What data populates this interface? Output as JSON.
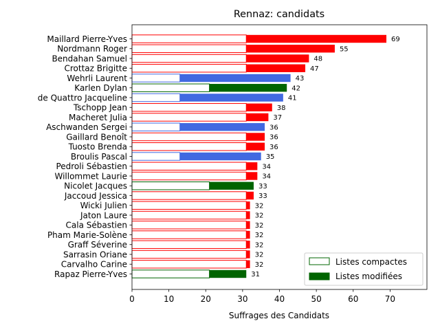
{
  "chart_data": {
    "type": "bar",
    "orientation": "horizontal",
    "stacked": true,
    "title": "Rennaz: candidats",
    "xlabel": "Suffrages des Candidats",
    "ylabel": "",
    "xlim": [
      0,
      80
    ],
    "xticks": [
      "0",
      "10",
      "20",
      "30",
      "40",
      "50",
      "60",
      "70"
    ],
    "grid": false,
    "legend_position": "bottom-right",
    "legend": [
      {
        "name": "Listes compactes",
        "style": "outline",
        "color": "#006400"
      },
      {
        "name": "Listes modifiées",
        "style": "filled",
        "color": "#006400"
      }
    ],
    "list_colors": {
      "red": "#ff0000",
      "blue": "#4169e1",
      "green": "#006400"
    },
    "categories": [
      "Maillard Pierre-Yves",
      "Nordmann Roger",
      "Bendahan Samuel",
      "Crottaz Brigitte",
      "Wehrli Laurent",
      "Karlen Dylan",
      "de Quattro Jacqueline",
      "Tschopp Jean",
      "Macheret Julia",
      "Aschwanden Sergei",
      "Gaillard Benoît",
      "Tuosto Brenda",
      "Broulis Pascal",
      "Pedroli Sébastien",
      "Willommet Laurie",
      "Nicolet Jacques",
      "Jaccoud Jessica",
      "Wicki Julien",
      "Jaton Laure",
      "Cala Sébastien",
      "Pham Marie-Solène",
      "Graff Séverine",
      "Sarrasin Oriane",
      "Carvalho Carine",
      "Rapaz Pierre-Yves"
    ],
    "series": [
      {
        "name": "Listes compactes",
        "values": [
          31,
          31,
          31,
          31,
          13,
          21,
          13,
          31,
          31,
          13,
          31,
          31,
          13,
          31,
          31,
          21,
          31,
          31,
          31,
          31,
          31,
          31,
          31,
          31,
          21
        ]
      },
      {
        "name": "Listes modifiées",
        "values": [
          38,
          24,
          17,
          16,
          30,
          21,
          28,
          7,
          6,
          23,
          5,
          5,
          22,
          3,
          3,
          12,
          2,
          1,
          1,
          1,
          1,
          1,
          1,
          1,
          10
        ]
      }
    ],
    "bar_colors": [
      "red",
      "red",
      "red",
      "red",
      "blue",
      "green",
      "blue",
      "red",
      "red",
      "blue",
      "red",
      "red",
      "blue",
      "red",
      "red",
      "green",
      "red",
      "red",
      "red",
      "red",
      "red",
      "red",
      "red",
      "red",
      "green"
    ],
    "totals": [
      69,
      55,
      48,
      47,
      43,
      42,
      41,
      38,
      37,
      36,
      36,
      36,
      35,
      34,
      34,
      33,
      33,
      32,
      32,
      32,
      32,
      32,
      32,
      32,
      31
    ]
  }
}
